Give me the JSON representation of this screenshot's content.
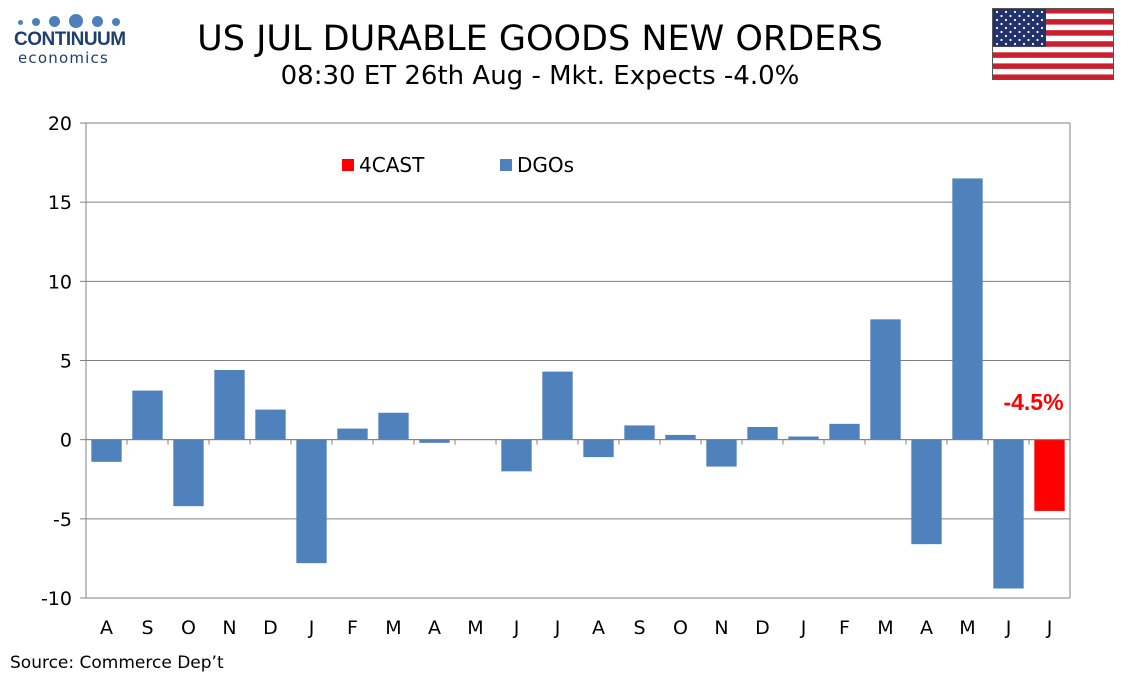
{
  "logo": {
    "name": "CONTINUUM",
    "sub": "economics"
  },
  "header": {
    "title": "US JUL DURABLE GOODS NEW ORDERS",
    "subtitle": "08:30 ET 26th Aug - Mkt. Expects -4.0%"
  },
  "source": "Source: Commerce Dep’t",
  "colors": {
    "dgos": "#4f81bd",
    "forecast": "#ff0000",
    "grid": "#808080",
    "logo": "#1f3f6e"
  },
  "icons": {
    "flag": "us-flag-icon"
  },
  "chart_data": {
    "type": "bar",
    "categories": [
      "A",
      "S",
      "O",
      "N",
      "D",
      "J",
      "F",
      "M",
      "A",
      "M",
      "J",
      "J",
      "A",
      "S",
      "O",
      "N",
      "D",
      "J",
      "F",
      "M",
      "A",
      "M",
      "J",
      "J"
    ],
    "series": [
      {
        "name": "4CAST",
        "color": "#ff0000",
        "values": [
          null,
          null,
          null,
          null,
          null,
          null,
          null,
          null,
          null,
          null,
          null,
          null,
          null,
          null,
          null,
          null,
          null,
          null,
          null,
          null,
          null,
          null,
          null,
          -4.5
        ]
      },
      {
        "name": "DGOs",
        "color": "#4f81bd",
        "values": [
          -1.4,
          3.1,
          -4.2,
          4.4,
          1.9,
          -7.8,
          0.7,
          1.7,
          -0.2,
          0.0,
          -2.0,
          4.3,
          -1.1,
          0.9,
          0.3,
          -1.7,
          0.8,
          0.2,
          1.0,
          7.6,
          -6.6,
          16.5,
          -9.4,
          null
        ]
      }
    ],
    "ylim": [
      -10,
      20
    ],
    "yticks": [
      "-10",
      "-5",
      "0",
      "5",
      "10",
      "15",
      "20"
    ],
    "grid": true,
    "legend": "top-center",
    "annotations": [
      {
        "text": "-4.5%",
        "category_index": 23,
        "color": "#ff0000"
      }
    ]
  }
}
